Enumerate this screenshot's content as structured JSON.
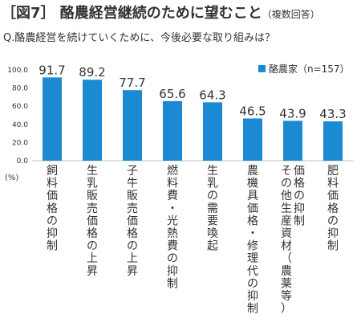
{
  "header": {
    "title": "［図7］ 酪農経営継続のために望むこと",
    "title_note": "（複数回答）",
    "question": "Q.酪農経営を続けていくために、今後必要な取り組みは？"
  },
  "colors": {
    "bar": "#1b8ad3",
    "axis": "#bfbfbf",
    "text": "#333333"
  },
  "chart_data": {
    "type": "bar",
    "categories": [
      "飼料価格の抑制",
      "生乳販売価格の上昇",
      "子牛販売価格の上昇",
      "燃料費・光熱費の抑制",
      "生乳の需要喚起",
      "農機具価格・修理代の抑制",
      "その他生産資材（農薬等）価格の抑制",
      "肥料価格の抑制"
    ],
    "category_lines": [
      [
        "飼料価格の抑制"
      ],
      [
        "生乳販売価格の上昇"
      ],
      [
        "子牛販売価格の上昇"
      ],
      [
        "燃料費・光熱費の抑制"
      ],
      [
        "生乳の需要喚起"
      ],
      [
        "農機具価格・修理代の抑制"
      ],
      [
        "価格の抑制",
        "その他生産資材（農薬等）"
      ],
      [
        "肥料価格の抑制"
      ]
    ],
    "series": [
      {
        "name": "酪農家（n=157）",
        "values": [
          91.7,
          89.2,
          77.7,
          65.6,
          64.3,
          46.5,
          43.9,
          43.3
        ]
      }
    ],
    "value_labels": [
      "91.7",
      "89.2",
      "77.7",
      "65.6",
      "64.3",
      "46.5",
      "43.9",
      "43.3"
    ],
    "yticks": [
      "0.0",
      "20.0",
      "40.0",
      "60.0",
      "80.0",
      "100.0"
    ],
    "ylim": [
      0,
      100
    ],
    "ylabel": "(%)",
    "legend_position": "top-right"
  }
}
